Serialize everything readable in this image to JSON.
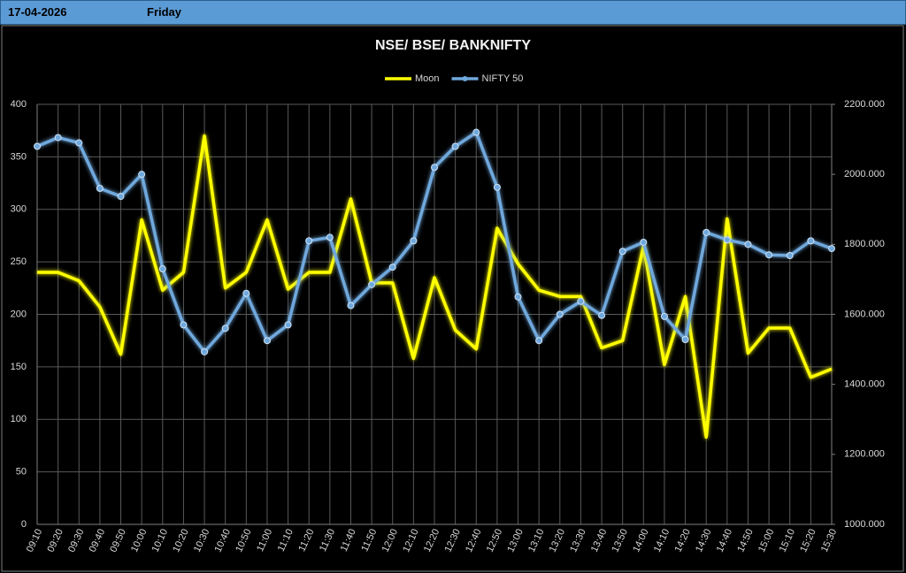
{
  "header": {
    "date": "17-04-2026",
    "day": "Friday"
  },
  "chart_data": {
    "type": "line",
    "title": "NSE/ BSE/ BANKNIFTY",
    "categories": [
      "09:10",
      "09:20",
      "09:30",
      "09:40",
      "09:50",
      "10:00",
      "10:10",
      "10:20",
      "10:30",
      "10:40",
      "10:50",
      "11:00",
      "11:10",
      "11:20",
      "11:30",
      "11:40",
      "11:50",
      "12:00",
      "12:10",
      "12:20",
      "12:30",
      "12:40",
      "12:50",
      "13:00",
      "13:10",
      "13:20",
      "13:30",
      "13:40",
      "13:50",
      "14:00",
      "14:10",
      "14:20",
      "14:30",
      "14:40",
      "14:50",
      "15:00",
      "15:10",
      "15:20",
      "15:30"
    ],
    "series": [
      {
        "name": "Moon",
        "color": "#ffff00",
        "values": [
          240,
          240,
          232,
          207,
          162,
          290,
          223,
          240,
          370,
          225,
          240,
          290,
          224,
          240,
          240,
          310,
          230,
          230,
          158,
          235,
          185,
          167,
          282,
          248,
          223,
          217,
          217,
          168,
          175,
          265,
          152,
          217,
          83,
          291,
          163,
          187,
          187,
          140,
          148
        ]
      },
      {
        "name": "NIFTY 50",
        "color": "#6fa8dc",
        "axis": "y2",
        "markers": true,
        "values": [
          2080,
          2105,
          2090,
          1960,
          1937,
          2000,
          1730,
          1570,
          1493,
          1560,
          1660,
          1525,
          1570,
          1810,
          1820,
          1625,
          1685,
          1735,
          1810,
          2020,
          2080,
          2120,
          1963,
          1650,
          1525,
          1600,
          1637,
          1597,
          1780,
          1806,
          1594,
          1528,
          1834,
          1813,
          1800,
          1770,
          1768,
          1810,
          1788
        ]
      }
    ],
    "ylim": [
      0,
      400
    ],
    "yticks": [
      0,
      50,
      100,
      150,
      200,
      250,
      300,
      350,
      400
    ],
    "y2lim": [
      1000,
      2200
    ],
    "y2ticks": [
      {
        "value": 1000,
        "label": "1000.000"
      },
      {
        "value": 1200,
        "label": "1200.000"
      },
      {
        "value": 1400,
        "label": "1400.000"
      },
      {
        "value": 1600,
        "label": "1600.000"
      },
      {
        "value": 1800,
        "label": "1800.000"
      },
      {
        "value": 2000,
        "label": "2000.000"
      },
      {
        "value": 2200,
        "label": "2200.000"
      }
    ],
    "grid": true,
    "legend": "top"
  }
}
